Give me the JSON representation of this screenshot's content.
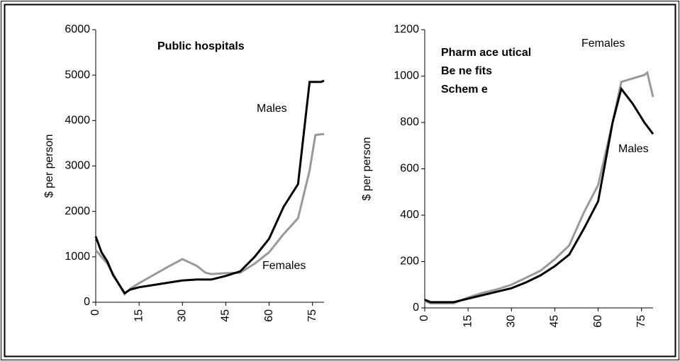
{
  "chart_data": [
    {
      "type": "line",
      "title": "Public hospitals",
      "ylabel": "$ per person",
      "xlim": [
        0,
        79
      ],
      "xticks": [
        0,
        15,
        30,
        45,
        60,
        75
      ],
      "ylim": [
        0,
        6000
      ],
      "yticks": [
        0,
        1000,
        2000,
        3000,
        4000,
        5000,
        6000
      ],
      "annotations": [
        "Males",
        "Females"
      ],
      "series": [
        {
          "name": "Males",
          "color": "#000000",
          "x": [
            0,
            2,
            4,
            6,
            8,
            10,
            12,
            15,
            20,
            25,
            30,
            35,
            40,
            45,
            50,
            55,
            60,
            65,
            70,
            74,
            78,
            79
          ],
          "values": [
            1450,
            1100,
            900,
            600,
            400,
            200,
            280,
            330,
            380,
            430,
            480,
            500,
            500,
            580,
            680,
            1000,
            1400,
            2100,
            2600,
            4850,
            4850,
            4880
          ]
        },
        {
          "name": "Females",
          "color": "#999999",
          "x": [
            0,
            4,
            8,
            10,
            12,
            15,
            20,
            25,
            30,
            35,
            38,
            40,
            45,
            50,
            55,
            60,
            65,
            70,
            74,
            76,
            78,
            79
          ],
          "values": [
            1150,
            850,
            400,
            180,
            300,
            420,
            600,
            780,
            950,
            800,
            650,
            620,
            640,
            650,
            850,
            1100,
            1500,
            1850,
            2900,
            3680,
            3700,
            3700
          ]
        }
      ]
    },
    {
      "type": "line",
      "title": [
        "Pharm ace utical",
        "Be ne fits",
        "Schem e"
      ],
      "ylabel": "$ per person",
      "xlim": [
        0,
        79
      ],
      "xticks": [
        0,
        15,
        30,
        45,
        60,
        75
      ],
      "ylim": [
        0,
        1200
      ],
      "yticks": [
        0,
        200,
        400,
        600,
        800,
        1000,
        1200
      ],
      "annotations": [
        "Females",
        "Males"
      ],
      "series": [
        {
          "name": "Males",
          "color": "#000000",
          "x": [
            0,
            2,
            10,
            15,
            20,
            25,
            30,
            35,
            40,
            45,
            50,
            55,
            60,
            65,
            68,
            72,
            76,
            79
          ],
          "values": [
            35,
            25,
            25,
            40,
            55,
            70,
            85,
            110,
            140,
            180,
            230,
            340,
            460,
            800,
            945,
            880,
            800,
            750
          ]
        },
        {
          "name": "Females",
          "color": "#999999",
          "x": [
            0,
            2,
            10,
            15,
            20,
            25,
            30,
            35,
            40,
            45,
            50,
            55,
            60,
            65,
            68,
            72,
            76,
            77,
            79
          ],
          "values": [
            30,
            20,
            20,
            45,
            65,
            80,
            100,
            130,
            160,
            210,
            270,
            410,
            530,
            800,
            975,
            990,
            1005,
            1015,
            910
          ]
        }
      ]
    }
  ]
}
